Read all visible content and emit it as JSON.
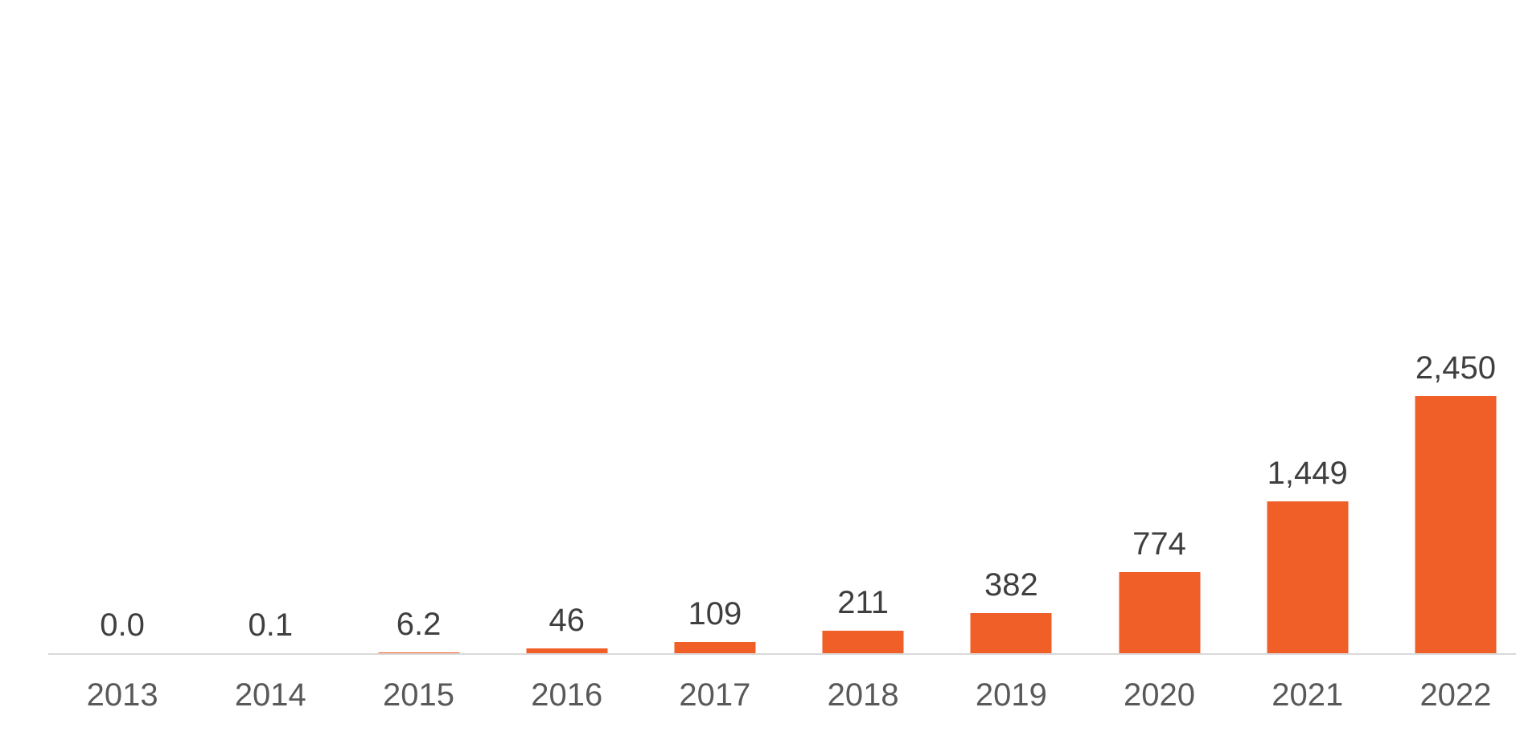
{
  "chart_data": {
    "type": "bar",
    "categories": [
      "2013",
      "2014",
      "2015",
      "2016",
      "2017",
      "2018",
      "2019",
      "2020",
      "2021",
      "2022"
    ],
    "values": [
      0.0,
      0.1,
      6.2,
      46,
      109,
      211,
      382,
      774,
      1449,
      2450
    ],
    "value_labels": [
      "0.0",
      "0.1",
      "6.2",
      "46",
      "109",
      "211",
      "382",
      "774",
      "1,449",
      "2,450"
    ],
    "title": "",
    "xlabel": "",
    "ylabel": "",
    "ylim": [
      0,
      2450
    ],
    "grid": false,
    "legend": false,
    "bar_color": "#F05F28",
    "value_label_color": "#3F3F3F",
    "tick_label_color": "#595959",
    "axis_line_color": "#D9D9D9"
  }
}
